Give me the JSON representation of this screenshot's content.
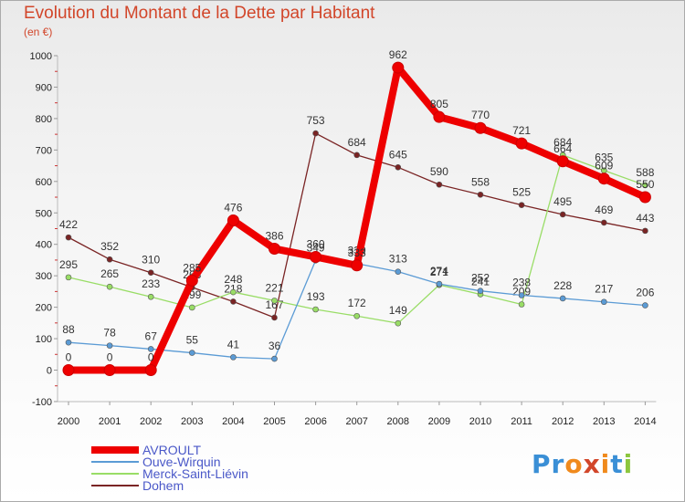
{
  "header": {
    "title": "Evolution du Montant de la Dette par Habitant",
    "subtitle": "(en €)"
  },
  "logo": {
    "text": "Proxiti",
    "colors": [
      "#3a8fd6",
      "#3a8fd6",
      "#f08a1c",
      "#d2462a",
      "#f08a1c",
      "#3a8fd6",
      "#8cc63e"
    ]
  },
  "chart_data": {
    "type": "line",
    "x": [
      "2000",
      "2001",
      "2002",
      "2003",
      "2004",
      "2005",
      "2006",
      "2007",
      "2008",
      "2009",
      "2010",
      "2011",
      "2012",
      "2013",
      "2014"
    ],
    "ylim": [
      -100,
      1000
    ],
    "yticks": [
      -100,
      0,
      100,
      200,
      300,
      400,
      500,
      600,
      700,
      800,
      900,
      1000
    ],
    "grid": false,
    "legend_position": "bottom-left",
    "series": [
      {
        "name": "AVROULT",
        "color": "#ee0000",
        "values": [
          0,
          0,
          0,
          285,
          476,
          386,
          360,
          333,
          962,
          805,
          770,
          721,
          664,
          609,
          550
        ]
      },
      {
        "name": "Ouve-Wirquin",
        "color": "#5b9bd5",
        "values": [
          88,
          78,
          67,
          55,
          41,
          36,
          349,
          339,
          313,
          274,
          252,
          238,
          228,
          217,
          206
        ]
      },
      {
        "name": "Merck-Saint-Liévin",
        "color": "#99dd66",
        "values": [
          295,
          265,
          233,
          199,
          248,
          221,
          193,
          172,
          149,
          271,
          241,
          209,
          684,
          635,
          588
        ]
      },
      {
        "name": "Dohem",
        "color": "#7a2424",
        "values": [
          422,
          352,
          310,
          263,
          218,
          167,
          753,
          684,
          645,
          590,
          558,
          525,
          495,
          469,
          443
        ]
      }
    ]
  }
}
